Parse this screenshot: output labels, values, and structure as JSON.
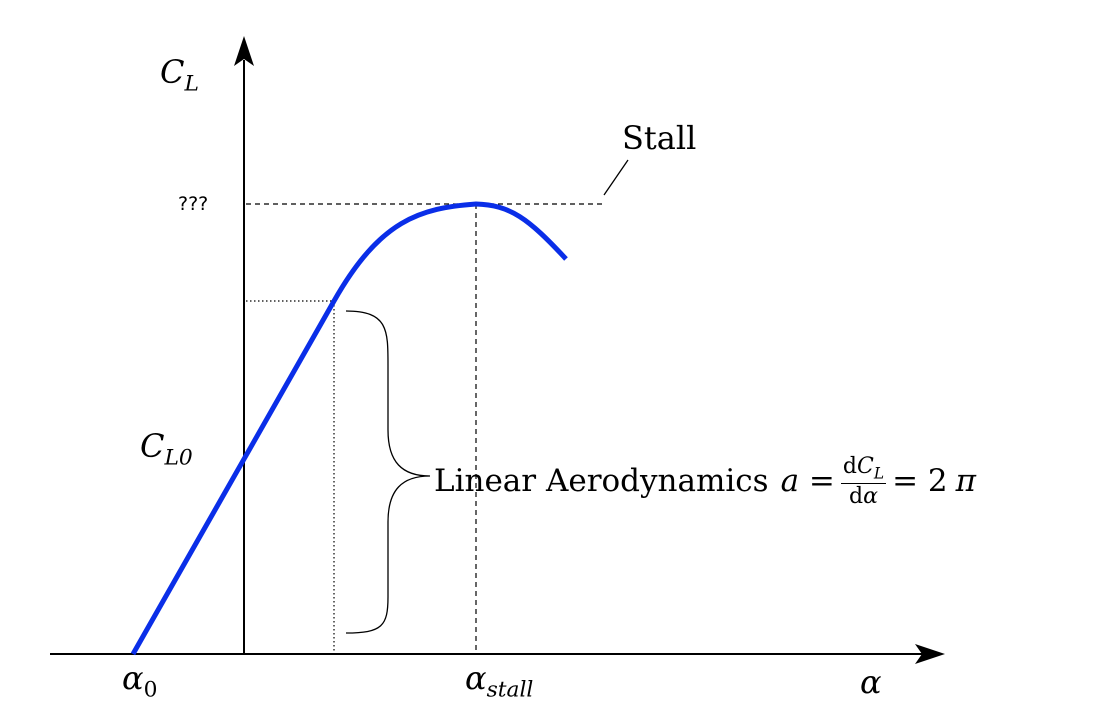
{
  "diagram": {
    "y_axis_label": {
      "main": "C",
      "sub": "L"
    },
    "x_axis_label": "α",
    "alpha_zero": {
      "main": "α",
      "sub": "0"
    },
    "alpha_stall": {
      "main": "α",
      "sub": "stall"
    },
    "cl_zero": {
      "main": "C",
      "sub": "L0"
    },
    "cl_max_label": "???",
    "stall_label": "Stall",
    "linear_text": "Linear Aerodynamics",
    "formula": {
      "lhs": "a =",
      "num_prefix": "d",
      "num_var": "C",
      "num_sub": "L",
      "den_prefix": "d",
      "den_var": "α",
      "rhs": "= 2",
      "pi": "π"
    },
    "colors": {
      "curve": "#0a2ee8",
      "axes": "#000000"
    }
  }
}
